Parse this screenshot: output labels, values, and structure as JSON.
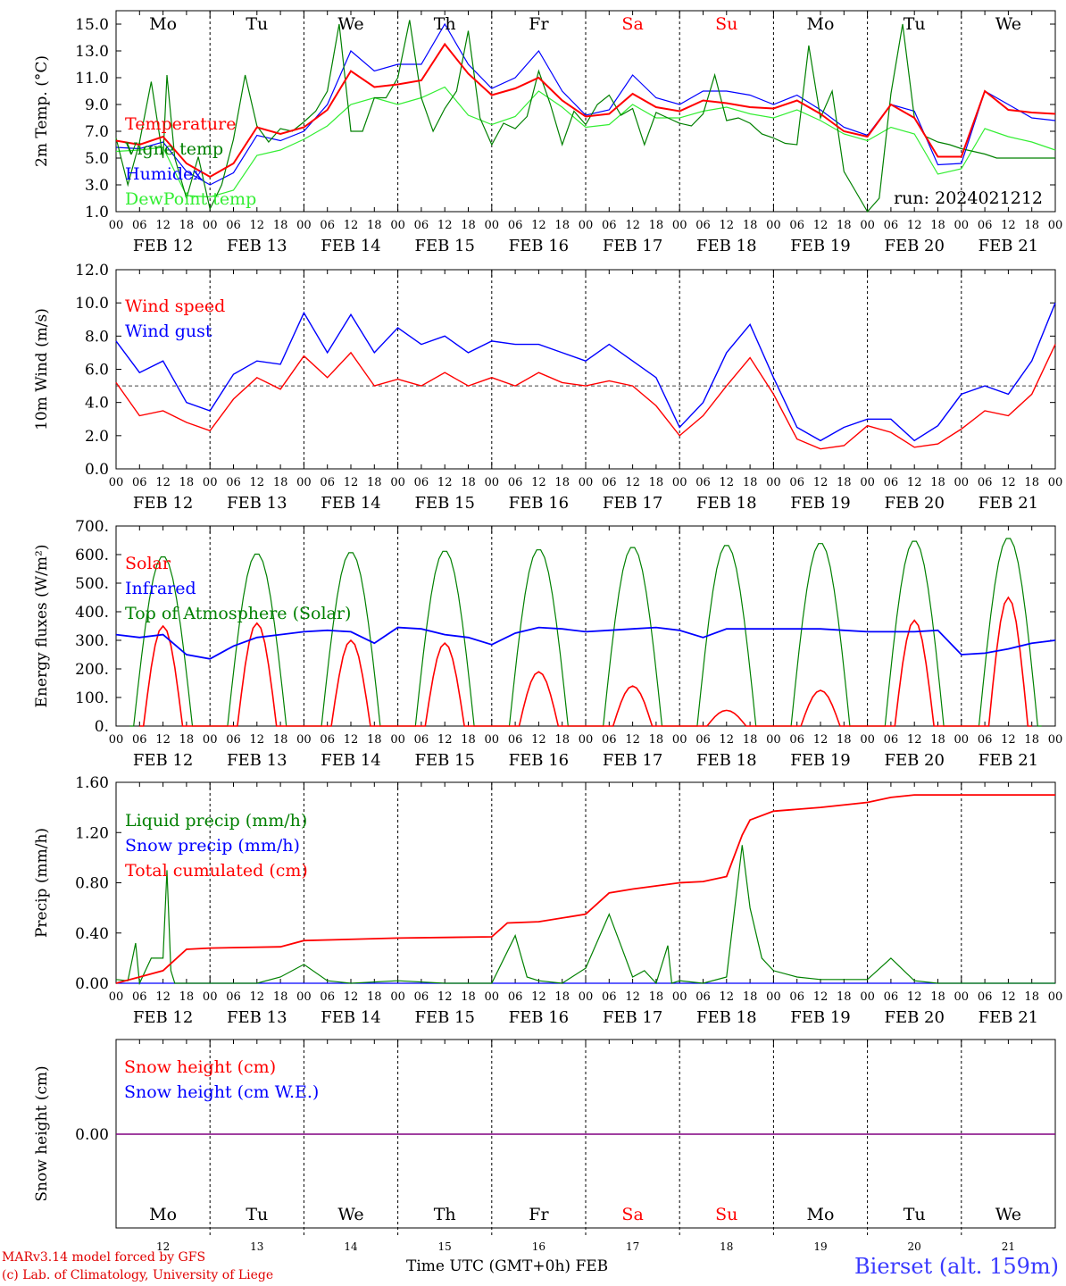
{
  "footer": {
    "credit_line1": "MARv3.14 model forced by GFS",
    "credit_line2": "(c) Lab. of Climatology, University of Liege",
    "x_axis_title": "Time UTC (GMT+0h) FEB",
    "station": "Bierset (alt. 159m)"
  },
  "colors": {
    "red": "#ff0000",
    "blue": "#0000ff",
    "dark_green": "#008000",
    "light_green": "#33ee33",
    "weekend": "#ff0000",
    "purple": "#800080",
    "grid": "#000000"
  },
  "chart_data": [
    {
      "type": "line",
      "ylabel": "2m Temp. (°C)",
      "ylim": [
        1.0,
        16.0
      ],
      "yticks": [
        "1.0",
        "3.0",
        "5.0",
        "7.0",
        "9.0",
        "11.0",
        "13.0",
        "15.0"
      ],
      "x_days": [
        "FEB 12",
        "FEB 13",
        "FEB 14",
        "FEB 15",
        "FEB 16",
        "FEB 17",
        "FEB 18",
        "FEB 19",
        "FEB 20",
        "FEB 21"
      ],
      "x_hour_ticks": [
        "00",
        "06",
        "12",
        "18"
      ],
      "weekdays": [
        "Mo",
        "Tu",
        "We",
        "Th",
        "Fr",
        "Sa",
        "Su",
        "Mo",
        "Tu",
        "We"
      ],
      "weekend_days": [
        "Sa",
        "Su"
      ],
      "annotation": "run: 2024021212",
      "series": [
        {
          "name": "Temperature",
          "color": "#ff0000",
          "x": [
            0,
            6,
            12,
            18,
            24,
            30,
            36,
            42,
            48,
            54,
            60,
            66,
            72,
            78,
            84,
            90,
            96,
            102,
            108,
            114,
            120,
            126,
            132,
            138,
            144,
            150,
            156,
            162,
            168,
            174,
            180,
            186,
            192,
            198,
            204,
            210,
            216,
            222,
            228,
            234,
            240
          ],
          "values": [
            6.3,
            6.0,
            6.6,
            4.6,
            3.6,
            4.6,
            7.3,
            6.8,
            7.3,
            8.6,
            11.5,
            10.3,
            10.5,
            10.8,
            13.5,
            11.3,
            9.7,
            10.2,
            11.0,
            9.3,
            8.1,
            8.3,
            9.8,
            8.8,
            8.5,
            9.3,
            9.1,
            8.8,
            8.7,
            9.3,
            8.3,
            7.0,
            6.6,
            9.0,
            8.0,
            5.1,
            5.1,
            10.0,
            8.6,
            8.4,
            8.3
          ]
        },
        {
          "name": "Vigne temp",
          "color": "#008000",
          "x": [
            0,
            3,
            6,
            9,
            12,
            13,
            15,
            18,
            21,
            24,
            27,
            30,
            33,
            36,
            39,
            42,
            45,
            48,
            51,
            54,
            57,
            60,
            63,
            66,
            69,
            72,
            75,
            78,
            81,
            84,
            87,
            90,
            93,
            96,
            99,
            102,
            105,
            108,
            111,
            114,
            117,
            120,
            123,
            126,
            129,
            132,
            135,
            138,
            141,
            144,
            147,
            150,
            153,
            156,
            159,
            162,
            165,
            168,
            171,
            174,
            177,
            180,
            183,
            186,
            189,
            192,
            195,
            198,
            201,
            204,
            207,
            210,
            213,
            216,
            219,
            222,
            225,
            228,
            231,
            234,
            237,
            240
          ],
          "values": [
            6.5,
            3.0,
            6.2,
            10.7,
            5.0,
            11.2,
            5.0,
            2.0,
            5.1,
            1.2,
            3.0,
            6.4,
            11.2,
            7.4,
            6.2,
            7.2,
            7.0,
            7.7,
            8.5,
            10.0,
            15.0,
            7.0,
            7.0,
            9.5,
            9.5,
            11.0,
            15.3,
            9.5,
            7.0,
            8.7,
            10.0,
            14.5,
            8.0,
            6.0,
            7.6,
            7.2,
            8.1,
            11.5,
            9.0,
            6.0,
            8.5,
            7.5,
            9.0,
            9.7,
            8.2,
            8.7,
            6.0,
            8.4,
            8.0,
            7.6,
            7.4,
            8.3,
            11.2,
            7.8,
            8.0,
            7.6,
            6.8,
            6.5,
            6.1,
            6.0,
            13.4,
            8.0,
            10.0,
            4.0,
            2.5,
            1.0,
            2.0,
            9.8,
            15.0,
            8.0,
            6.6,
            6.2,
            6.0,
            5.7,
            5.5,
            5.3,
            5.0,
            5.0,
            5.0,
            5.0,
            5.0,
            5.0
          ]
        },
        {
          "name": "Humidex",
          "color": "#0000ff",
          "x": [
            0,
            6,
            12,
            18,
            24,
            30,
            36,
            42,
            48,
            54,
            60,
            66,
            72,
            78,
            84,
            90,
            96,
            102,
            108,
            114,
            120,
            126,
            132,
            138,
            144,
            150,
            156,
            162,
            168,
            174,
            180,
            186,
            192,
            198,
            204,
            210,
            216,
            222,
            228,
            234,
            240
          ],
          "values": [
            5.8,
            5.7,
            6.2,
            4.0,
            3.0,
            3.9,
            6.7,
            6.3,
            7.0,
            9.0,
            13.0,
            11.5,
            12.0,
            12.0,
            15.0,
            12.0,
            10.2,
            11.0,
            13.0,
            10.0,
            8.2,
            8.6,
            11.2,
            9.5,
            9.0,
            10.0,
            10.0,
            9.7,
            9.0,
            9.7,
            8.6,
            7.3,
            6.7,
            9.0,
            8.5,
            4.5,
            4.6,
            10.0,
            9.0,
            8.0,
            7.8
          ]
        },
        {
          "name": "DewPoint temp",
          "color": "#33ee33",
          "x": [
            0,
            6,
            12,
            18,
            24,
            30,
            36,
            42,
            48,
            54,
            60,
            66,
            72,
            78,
            84,
            90,
            96,
            102,
            108,
            114,
            120,
            126,
            132,
            138,
            144,
            150,
            156,
            162,
            168,
            174,
            180,
            186,
            192,
            198,
            204,
            210,
            216,
            222,
            228,
            234,
            240
          ],
          "values": [
            5.5,
            5.6,
            5.8,
            2.2,
            2.1,
            2.6,
            5.2,
            5.6,
            6.4,
            7.4,
            9.0,
            9.5,
            9.0,
            9.5,
            10.3,
            8.2,
            7.5,
            8.1,
            10.0,
            8.8,
            7.3,
            7.5,
            9.0,
            8.0,
            8.0,
            8.5,
            8.8,
            8.3,
            8.0,
            8.6,
            7.8,
            6.8,
            6.3,
            7.3,
            6.8,
            3.8,
            4.2,
            7.2,
            6.6,
            6.2,
            5.6
          ]
        }
      ]
    },
    {
      "type": "line",
      "ylabel": "10m Wind (m/s)",
      "ylim": [
        0.0,
        12.0
      ],
      "yticks": [
        "0.0",
        "2.0",
        "4.0",
        "6.0",
        "8.0",
        "10.0",
        "12.0"
      ],
      "reference_line": 5.0,
      "x_days": [
        "FEB 12",
        "FEB 13",
        "FEB 14",
        "FEB 15",
        "FEB 16",
        "FEB 17",
        "FEB 18",
        "FEB 19",
        "FEB 20",
        "FEB 21"
      ],
      "x_hour_ticks": [
        "00",
        "06",
        "12",
        "18"
      ],
      "series": [
        {
          "name": "Wind speed",
          "color": "#ff0000",
          "x": [
            0,
            6,
            12,
            18,
            24,
            30,
            36,
            42,
            48,
            54,
            60,
            66,
            72,
            78,
            84,
            90,
            96,
            102,
            108,
            114,
            120,
            126,
            132,
            138,
            144,
            150,
            156,
            162,
            168,
            174,
            180,
            186,
            192,
            198,
            204,
            210,
            216,
            222,
            228,
            234,
            240
          ],
          "values": [
            5.2,
            3.2,
            3.5,
            2.8,
            2.3,
            4.2,
            5.5,
            4.8,
            6.8,
            5.5,
            7.0,
            5.0,
            5.4,
            5.0,
            5.8,
            5.0,
            5.5,
            5.0,
            5.8,
            5.2,
            5.0,
            5.3,
            5.0,
            3.8,
            2.0,
            3.2,
            5.0,
            6.7,
            4.5,
            1.8,
            1.2,
            1.4,
            2.6,
            2.2,
            1.3,
            1.5,
            2.4,
            3.5,
            3.2,
            4.5,
            7.5
          ]
        },
        {
          "name": "Wind gust",
          "color": "#0000ff",
          "x": [
            0,
            6,
            12,
            18,
            24,
            30,
            36,
            42,
            48,
            54,
            60,
            66,
            72,
            78,
            84,
            90,
            96,
            102,
            108,
            114,
            120,
            126,
            132,
            138,
            144,
            150,
            156,
            162,
            168,
            174,
            180,
            186,
            192,
            198,
            204,
            210,
            216,
            222,
            228,
            234,
            240
          ],
          "values": [
            7.7,
            5.8,
            6.5,
            4.0,
            3.5,
            5.7,
            6.5,
            6.3,
            9.4,
            7.0,
            9.3,
            7.0,
            8.5,
            7.5,
            8.0,
            7.0,
            7.7,
            7.5,
            7.5,
            7.0,
            6.5,
            7.5,
            6.5,
            5.5,
            2.5,
            4.0,
            7.0,
            8.7,
            5.5,
            2.5,
            1.7,
            2.5,
            3.0,
            3.0,
            1.7,
            2.6,
            4.5,
            5.0,
            4.5,
            6.5,
            10.0
          ]
        }
      ]
    },
    {
      "type": "line",
      "ylabel": "Energy fluxes (W/m²)",
      "ylim": [
        0,
        700
      ],
      "yticks": [
        "0.",
        "100.",
        "200.",
        "300.",
        "400.",
        "500.",
        "600.",
        "700."
      ],
      "x_days": [
        "FEB 12",
        "FEB 13",
        "FEB 14",
        "FEB 15",
        "FEB 16",
        "FEB 17",
        "FEB 18",
        "FEB 19",
        "FEB 20",
        "FEB 21"
      ],
      "x_hour_ticks": [
        "00",
        "06",
        "12",
        "18"
      ],
      "series": [
        {
          "name": "Solar",
          "color": "#ff0000",
          "day_peak_values": [
            350,
            360,
            300,
            290,
            190,
            140,
            55,
            125,
            370,
            450
          ]
        },
        {
          "name": "Infrared",
          "color": "#0000ff",
          "x": [
            0,
            6,
            12,
            18,
            24,
            30,
            36,
            42,
            48,
            54,
            60,
            66,
            72,
            78,
            84,
            90,
            96,
            102,
            108,
            114,
            120,
            126,
            132,
            138,
            144,
            150,
            156,
            162,
            168,
            174,
            180,
            186,
            192,
            198,
            204,
            210,
            216,
            222,
            228,
            234,
            240
          ],
          "values": [
            320,
            310,
            320,
            250,
            235,
            280,
            310,
            320,
            330,
            335,
            330,
            290,
            345,
            340,
            320,
            310,
            285,
            325,
            345,
            340,
            330,
            335,
            340,
            345,
            335,
            310,
            340,
            340,
            340,
            340,
            340,
            335,
            330,
            330,
            330,
            335,
            250,
            255,
            270,
            290,
            300
          ]
        },
        {
          "name": "Top of Atmosphere (Solar)",
          "color": "#008000",
          "day_peak_values": [
            595,
            605,
            610,
            615,
            620,
            628,
            635,
            642,
            650,
            660
          ]
        }
      ]
    },
    {
      "type": "line",
      "ylabel": "Precip (mm/h)",
      "ylim": [
        0.0,
        1.6
      ],
      "yticks": [
        "0.00",
        "0.40",
        "0.80",
        "1.20",
        "1.60"
      ],
      "x_days": [
        "FEB 12",
        "FEB 13",
        "FEB 14",
        "FEB 15",
        "FEB 16",
        "FEB 17",
        "FEB 18",
        "FEB 19",
        "FEB 20",
        "FEB 21"
      ],
      "x_hour_ticks": [
        "00",
        "06",
        "12",
        "18"
      ],
      "series": [
        {
          "name": "Liquid precip (mm/h)",
          "color": "#008000",
          "x": [
            0,
            3,
            5,
            6,
            9,
            12,
            13,
            14,
            15,
            18,
            24,
            36,
            42,
            48,
            54,
            60,
            72,
            84,
            96,
            102,
            105,
            108,
            114,
            120,
            126,
            129,
            132,
            135,
            138,
            141,
            142,
            144,
            150,
            156,
            160,
            162,
            165,
            168,
            174,
            180,
            192,
            198,
            204,
            210,
            216,
            228,
            240
          ],
          "values": [
            0.03,
            0.02,
            0.32,
            0.0,
            0.2,
            0.2,
            0.9,
            0.1,
            0.0,
            0.0,
            0.0,
            0.0,
            0.05,
            0.15,
            0.02,
            0.0,
            0.02,
            0.0,
            0.0,
            0.38,
            0.05,
            0.02,
            0.0,
            0.12,
            0.55,
            0.3,
            0.05,
            0.1,
            0.0,
            0.3,
            0.0,
            0.02,
            0.0,
            0.05,
            1.1,
            0.6,
            0.2,
            0.1,
            0.05,
            0.03,
            0.03,
            0.2,
            0.02,
            0.0,
            0.0,
            0.0,
            0.0
          ]
        },
        {
          "name": "Snow precip (mm/h)",
          "color": "#0000ff",
          "x": [
            0,
            240
          ],
          "values": [
            0.0,
            0.0
          ]
        },
        {
          "name": "Total cumulated (cm)",
          "color": "#ff0000",
          "x": [
            0,
            6,
            12,
            18,
            24,
            42,
            48,
            72,
            96,
            100,
            108,
            120,
            126,
            132,
            144,
            150,
            156,
            160,
            162,
            168,
            180,
            192,
            198,
            204,
            216,
            228,
            240
          ],
          "values": [
            0.0,
            0.05,
            0.1,
            0.27,
            0.28,
            0.29,
            0.34,
            0.36,
            0.37,
            0.48,
            0.49,
            0.55,
            0.72,
            0.75,
            0.8,
            0.81,
            0.85,
            1.18,
            1.3,
            1.37,
            1.4,
            1.44,
            1.48,
            1.5,
            1.5,
            1.5,
            1.5
          ]
        }
      ]
    },
    {
      "type": "line",
      "ylabel": "Snow height (cm)",
      "yticks": [
        "0.00"
      ],
      "x_days": [
        "FEB 12",
        "FEB 13",
        "FEB 14",
        "FEB 15",
        "FEB 16",
        "FEB 17",
        "FEB 18",
        "FEB 19",
        "FEB 20",
        "FEB 21"
      ],
      "weekdays": [
        "Mo",
        "Tu",
        "We",
        "Th",
        "Fr",
        "Sa",
        "Su",
        "Mo",
        "Tu",
        "We"
      ],
      "weekend_days": [
        "Sa",
        "Su"
      ],
      "day_numbers": [
        "12",
        "13",
        "14",
        "15",
        "16",
        "17",
        "18",
        "19",
        "20",
        "21"
      ],
      "series": [
        {
          "name": "Snow height (cm)",
          "color": "#ff0000",
          "x": [
            0,
            240
          ],
          "values": [
            0.0,
            0.0
          ]
        },
        {
          "name": "Snow height (cm W.E.)",
          "color": "#0000ff",
          "x": [
            0,
            240
          ],
          "values": [
            0.0,
            0.0
          ]
        }
      ]
    }
  ]
}
